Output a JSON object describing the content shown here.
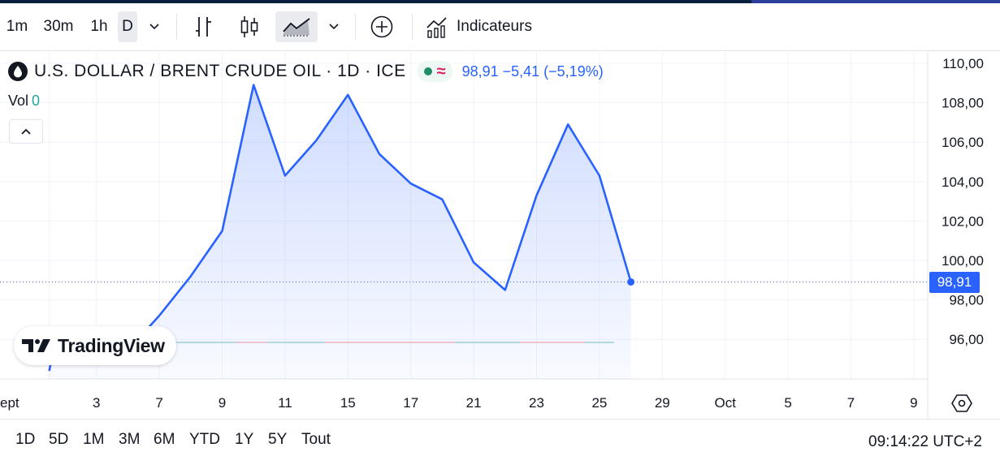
{
  "toolbar": {
    "intervals": [
      "1m",
      "30m",
      "1h",
      "D"
    ],
    "active_interval": "D",
    "indicators_label": "Indicateurs",
    "icons": [
      "chevron-down-icon",
      "bar-chart-icon",
      "candles-icon",
      "area-chart-icon",
      "chevron-down-icon",
      "plus-circle-icon",
      "indicators-icon"
    ]
  },
  "legend": {
    "title": "U.S. DOLLAR / BRENT CRUDE OIL · 1D · ICE",
    "price_change": "98,91  −5,41 (−5,19%)",
    "vol_label": "Vol",
    "vol_value": "0"
  },
  "logo": {
    "text": "TradingView"
  },
  "bottom": {
    "ranges": [
      "1D",
      "5D",
      "1M",
      "3M",
      "6M",
      "YTD",
      "1Y",
      "5Y",
      "Tout"
    ],
    "clock": "09:14:22 UTC+2"
  },
  "colors": {
    "line": "#2962ff",
    "accent": "#2962ff",
    "vol": "#26a69a"
  },
  "chart_data": {
    "type": "area",
    "y_ticks": [
      "110,00",
      "108,00",
      "106,00",
      "104,00",
      "102,00",
      "100,00",
      "98,00",
      "96,00"
    ],
    "y_range": [
      94.0,
      111.0
    ],
    "x_ticks": [
      {
        "label": "ept",
        "idx": -0.5
      },
      {
        "label": "3",
        "idx": 1
      },
      {
        "label": "7",
        "idx": 3
      },
      {
        "label": "9",
        "idx": 5
      },
      {
        "label": "11",
        "idx": 7
      },
      {
        "label": "15",
        "idx": 9
      },
      {
        "label": "17",
        "idx": 11
      },
      {
        "label": "21",
        "idx": 13
      },
      {
        "label": "23",
        "idx": 15
      },
      {
        "label": "25",
        "idx": 17
      },
      {
        "label": "29",
        "idx": 19
      },
      {
        "label": "Oct",
        "idx": 21
      },
      {
        "label": "5",
        "idx": 23
      },
      {
        "label": "7",
        "idx": 25
      },
      {
        "label": "9",
        "idx": 27
      }
    ],
    "series": [
      {
        "x": [
          -0.5,
          -0.4,
          0.0,
          0.3,
          1.0,
          2.0,
          2.6,
          3.0,
          4.0,
          5.0,
          6.0,
          7.0,
          8.0,
          9.0,
          10.0,
          11.0,
          12.0,
          13.0,
          14.0,
          15.0,
          16.0,
          17.0,
          18.0
        ],
        "y": [
          94.4,
          95.2,
          95.2,
          95.2,
          95.5,
          96.0,
          96.5,
          97.2,
          99.2,
          101.5,
          108.9,
          104.3,
          106.1,
          108.4,
          105.4,
          103.9,
          103.1,
          99.9,
          98.5,
          103.3,
          106.9,
          104.3,
          98.91
        ]
      }
    ],
    "last_value": "98,91",
    "last_value_num": 98.91,
    "volume_value": 0
  }
}
